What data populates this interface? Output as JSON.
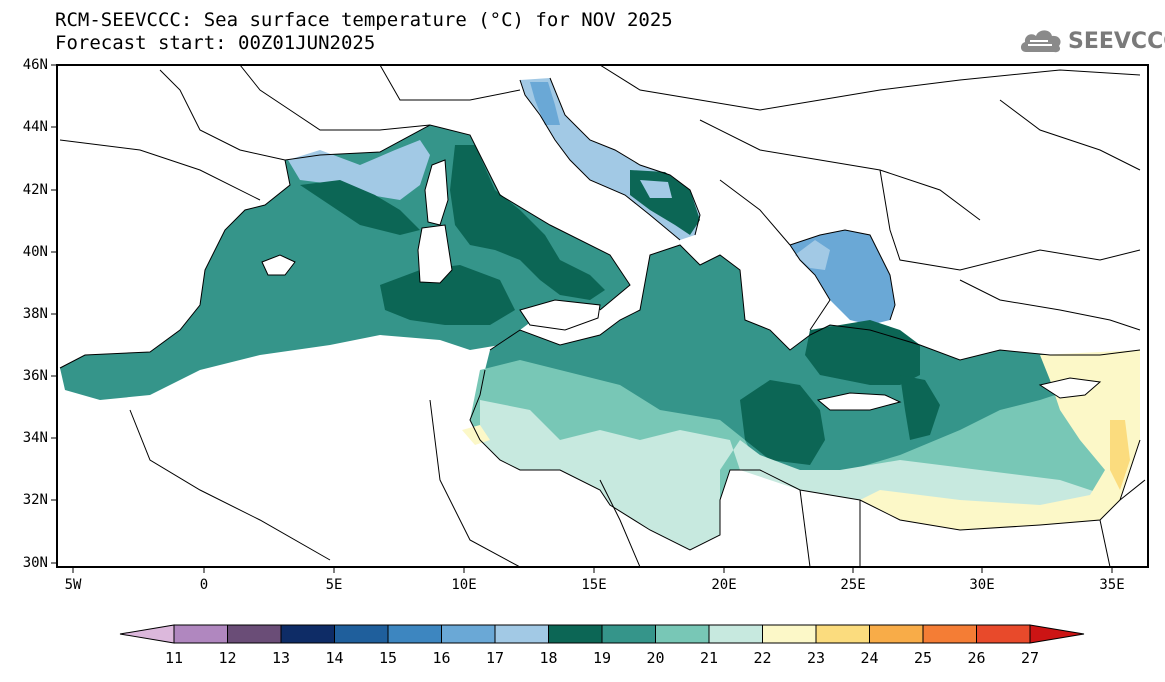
{
  "title": "RCM-SEEVCCC: Sea surface temperature (°C) for NOV 2025",
  "subtitle": "Forecast start: 00Z01JUN2025",
  "logo": {
    "text": "SEEVCCC",
    "icon": "cloud-logo-icon",
    "color": "#7a7a7a"
  },
  "map": {
    "lat_labels": [
      "46N",
      "44N",
      "42N",
      "40N",
      "38N",
      "36N",
      "34N",
      "32N",
      "30N"
    ],
    "lon_labels": [
      "5W",
      "0",
      "5E",
      "10E",
      "15E",
      "20E",
      "25E",
      "30E",
      "35E"
    ],
    "lat_range": [
      30,
      46
    ],
    "lon_range": [
      -5.5,
      36.5
    ],
    "land_color": "#ffffff",
    "border_color": "#000000"
  },
  "colorbar": {
    "values": [
      "11",
      "12",
      "13",
      "14",
      "15",
      "16",
      "17",
      "18",
      "19",
      "20",
      "21",
      "22",
      "23",
      "24",
      "25",
      "26",
      "27"
    ],
    "under_color": "#dcb8dc",
    "over_color": "#cc1414",
    "colors": [
      "#b087bf",
      "#6a4d77",
      "#0e2c66",
      "#1f5f9c",
      "#3d86c0",
      "#6aa8d6",
      "#a2c9e5",
      "#0c6655",
      "#35958a",
      "#78c7b6",
      "#c7e9df",
      "#fcf8c8",
      "#fbdc7e",
      "#f8ac48",
      "#f47d35",
      "#e84a2b"
    ]
  },
  "regions": {
    "c18": "#a2c9e5",
    "c17": "#6aa8d6",
    "c19": "#0c6655",
    "c20": "#35958a",
    "c21": "#78c7b6",
    "c22": "#c7e9df",
    "c23": "#fcf8c8",
    "c24": "#fbdc7e"
  }
}
